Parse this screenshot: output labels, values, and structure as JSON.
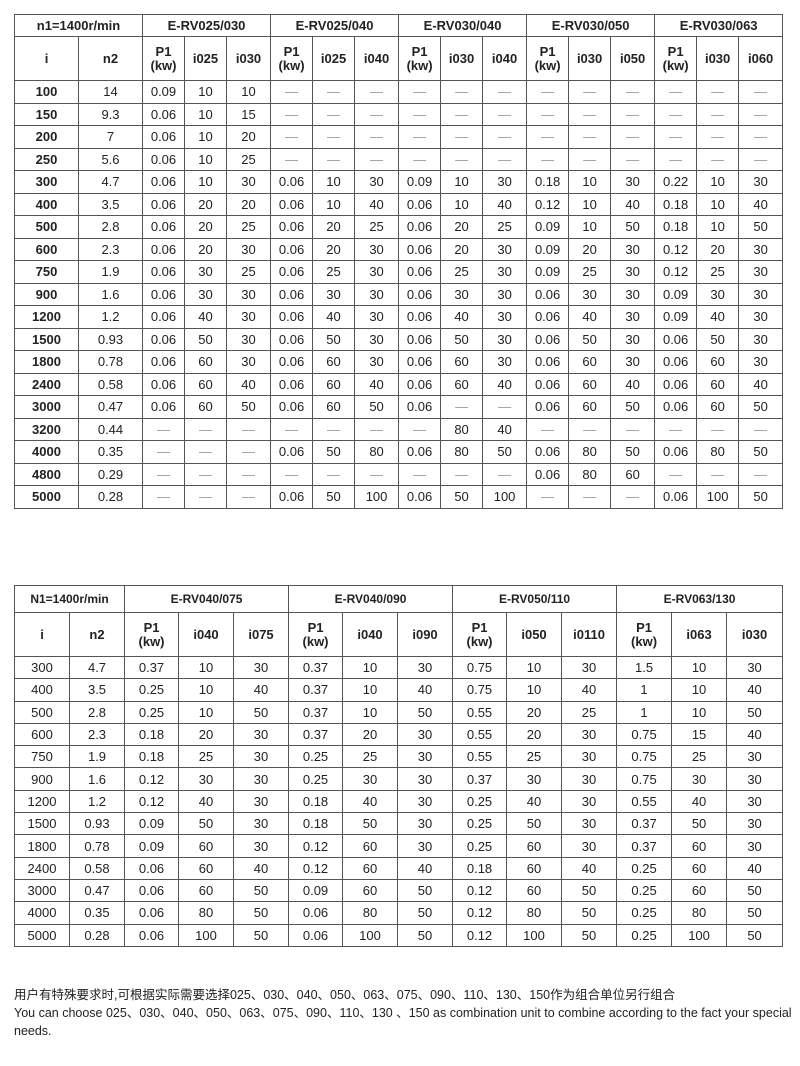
{
  "table1": {
    "corner": "n1=1400r/min",
    "col_i": "i",
    "col_n2": "n2",
    "groups": [
      {
        "title": "E-RV025/030",
        "cols": [
          "P1",
          "(kw)",
          "i025",
          "i030"
        ]
      },
      {
        "title": "E-RV025/040",
        "cols": [
          "P1",
          "(kw)",
          "i025",
          "i040"
        ]
      },
      {
        "title": "E-RV030/040",
        "cols": [
          "P1",
          "(kw)",
          "i030",
          "i040"
        ]
      },
      {
        "title": "E-RV030/050",
        "cols": [
          "P1",
          "(kw)",
          "i030",
          "i050"
        ]
      },
      {
        "title": "E-RV030/063",
        "cols": [
          "P1",
          "(kw)",
          "i030",
          "i060"
        ]
      }
    ],
    "rows": [
      [
        "100",
        "14",
        "0.09",
        "10",
        "10",
        "—",
        "—",
        "—",
        "—",
        "—",
        "—",
        "—",
        "—",
        "—",
        "—",
        "—",
        "—"
      ],
      [
        "150",
        "9.3",
        "0.06",
        "10",
        "15",
        "—",
        "—",
        "—",
        "—",
        "—",
        "—",
        "—",
        "—",
        "—",
        "—",
        "—",
        "—"
      ],
      [
        "200",
        "7",
        "0.06",
        "10",
        "20",
        "—",
        "—",
        "—",
        "—",
        "—",
        "—",
        "—",
        "—",
        "—",
        "—",
        "—",
        "—"
      ],
      [
        "250",
        "5.6",
        "0.06",
        "10",
        "25",
        "—",
        "—",
        "—",
        "—",
        "—",
        "—",
        "—",
        "—",
        "—",
        "—",
        "—",
        "—"
      ],
      [
        "300",
        "4.7",
        "0.06",
        "10",
        "30",
        "0.06",
        "10",
        "30",
        "0.09",
        "10",
        "30",
        "0.18",
        "10",
        "30",
        "0.22",
        "10",
        "30"
      ],
      [
        "400",
        "3.5",
        "0.06",
        "20",
        "20",
        "0.06",
        "10",
        "40",
        "0.06",
        "10",
        "40",
        "0.12",
        "10",
        "40",
        "0.18",
        "10",
        "40"
      ],
      [
        "500",
        "2.8",
        "0.06",
        "20",
        "25",
        "0.06",
        "20",
        "25",
        "0.06",
        "20",
        "25",
        "0.09",
        "10",
        "50",
        "0.18",
        "10",
        "50"
      ],
      [
        "600",
        "2.3",
        "0.06",
        "20",
        "30",
        "0.06",
        "20",
        "30",
        "0.06",
        "20",
        "30",
        "0.09",
        "20",
        "30",
        "0.12",
        "20",
        "30"
      ],
      [
        "750",
        "1.9",
        "0.06",
        "30",
        "25",
        "0.06",
        "25",
        "30",
        "0.06",
        "25",
        "30",
        "0.09",
        "25",
        "30",
        "0.12",
        "25",
        "30"
      ],
      [
        "900",
        "1.6",
        "0.06",
        "30",
        "30",
        "0.06",
        "30",
        "30",
        "0.06",
        "30",
        "30",
        "0.06",
        "30",
        "30",
        "0.09",
        "30",
        "30"
      ],
      [
        "1200",
        "1.2",
        "0.06",
        "40",
        "30",
        "0.06",
        "40",
        "30",
        "0.06",
        "40",
        "30",
        "0.06",
        "40",
        "30",
        "0.09",
        "40",
        "30"
      ],
      [
        "1500",
        "0.93",
        "0.06",
        "50",
        "30",
        "0.06",
        "50",
        "30",
        "0.06",
        "50",
        "30",
        "0.06",
        "50",
        "30",
        "0.06",
        "50",
        "30"
      ],
      [
        "1800",
        "0.78",
        "0.06",
        "60",
        "30",
        "0.06",
        "60",
        "30",
        "0.06",
        "60",
        "30",
        "0.06",
        "60",
        "30",
        "0.06",
        "60",
        "30"
      ],
      [
        "2400",
        "0.58",
        "0.06",
        "60",
        "40",
        "0.06",
        "60",
        "40",
        "0.06",
        "60",
        "40",
        "0.06",
        "60",
        "40",
        "0.06",
        "60",
        "40"
      ],
      [
        "3000",
        "0.47",
        "0.06",
        "60",
        "50",
        "0.06",
        "60",
        "50",
        "0.06",
        "—",
        "—",
        "0.06",
        "60",
        "50",
        "0.06",
        "60",
        "50"
      ],
      [
        "3200",
        "0.44",
        "—",
        "—",
        "—",
        "—",
        "—",
        "—",
        "—",
        "80",
        "40",
        "—",
        "—",
        "—",
        "—",
        "—",
        "—"
      ],
      [
        "4000",
        "0.35",
        "—",
        "—",
        "—",
        "0.06",
        "50",
        "80",
        "0.06",
        "80",
        "50",
        "0.06",
        "80",
        "50",
        "0.06",
        "80",
        "50"
      ],
      [
        "4800",
        "0.29",
        "—",
        "—",
        "—",
        "—",
        "—",
        "—",
        "—",
        "—",
        "—",
        "0.06",
        "80",
        "60",
        "—",
        "—",
        "—"
      ],
      [
        "5000",
        "0.28",
        "—",
        "—",
        "—",
        "0.06",
        "50",
        "100",
        "0.06",
        "50",
        "100",
        "—",
        "—",
        "—",
        "0.06",
        "100",
        "50"
      ]
    ]
  },
  "table2": {
    "corner": "N1=1400r/min",
    "col_i": "i",
    "col_n2": "n2",
    "groups": [
      {
        "title": "E-RV040/075",
        "cols": [
          "P1",
          "(kw)",
          "i040",
          "i075"
        ]
      },
      {
        "title": "E-RV040/090",
        "cols": [
          "P1",
          "(kw)",
          "i040",
          "i090"
        ]
      },
      {
        "title": "E-RV050/110",
        "cols": [
          "P1",
          "(kw)",
          "i050",
          "i0110"
        ]
      },
      {
        "title": "E-RV063/130",
        "cols": [
          "P1",
          "(kw)",
          "i063",
          "i030"
        ]
      }
    ],
    "rows": [
      [
        "300",
        "4.7",
        "0.37",
        "10",
        "30",
        "0.37",
        "10",
        "30",
        "0.75",
        "10",
        "30",
        "1.5",
        "10",
        "30"
      ],
      [
        "400",
        "3.5",
        "0.25",
        "10",
        "40",
        "0.37",
        "10",
        "40",
        "0.75",
        "10",
        "40",
        "1",
        "10",
        "40"
      ],
      [
        "500",
        "2.8",
        "0.25",
        "10",
        "50",
        "0.37",
        "10",
        "50",
        "0.55",
        "20",
        "25",
        "1",
        "10",
        "50"
      ],
      [
        "600",
        "2.3",
        "0.18",
        "20",
        "30",
        "0.37",
        "20",
        "30",
        "0.55",
        "20",
        "30",
        "0.75",
        "15",
        "40"
      ],
      [
        "750",
        "1.9",
        "0.18",
        "25",
        "30",
        "0.25",
        "25",
        "30",
        "0.55",
        "25",
        "30",
        "0.75",
        "25",
        "30"
      ],
      [
        "900",
        "1.6",
        "0.12",
        "30",
        "30",
        "0.25",
        "30",
        "30",
        "0.37",
        "30",
        "30",
        "0.75",
        "30",
        "30"
      ],
      [
        "1200",
        "1.2",
        "0.12",
        "40",
        "30",
        "0.18",
        "40",
        "30",
        "0.25",
        "40",
        "30",
        "0.55",
        "40",
        "30"
      ],
      [
        "1500",
        "0.93",
        "0.09",
        "50",
        "30",
        "0.18",
        "50",
        "30",
        "0.25",
        "50",
        "30",
        "0.37",
        "50",
        "30"
      ],
      [
        "1800",
        "0.78",
        "0.09",
        "60",
        "30",
        "0.12",
        "60",
        "30",
        "0.25",
        "60",
        "30",
        "0.37",
        "60",
        "30"
      ],
      [
        "2400",
        "0.58",
        "0.06",
        "60",
        "40",
        "0.12",
        "60",
        "40",
        "0.18",
        "60",
        "40",
        "0.25",
        "60",
        "40"
      ],
      [
        "3000",
        "0.47",
        "0.06",
        "60",
        "50",
        "0.09",
        "60",
        "50",
        "0.12",
        "60",
        "50",
        "0.25",
        "60",
        "50"
      ],
      [
        "4000",
        "0.35",
        "0.06",
        "80",
        "50",
        "0.06",
        "80",
        "50",
        "0.12",
        "80",
        "50",
        "0.25",
        "80",
        "50"
      ],
      [
        "5000",
        "0.28",
        "0.06",
        "100",
        "50",
        "0.06",
        "100",
        "50",
        "0.12",
        "100",
        "50",
        "0.25",
        "100",
        "50"
      ]
    ]
  },
  "note": {
    "zh": "用户有特殊要求时,可根据实际需要选择025、030、040、050、063、075、090、110、130、150作为组合单位另行组合",
    "en": "You can choose 025、030、040、050、063、075、090、110、130 、150 as combination unit to combine according to the fact your special needs."
  }
}
